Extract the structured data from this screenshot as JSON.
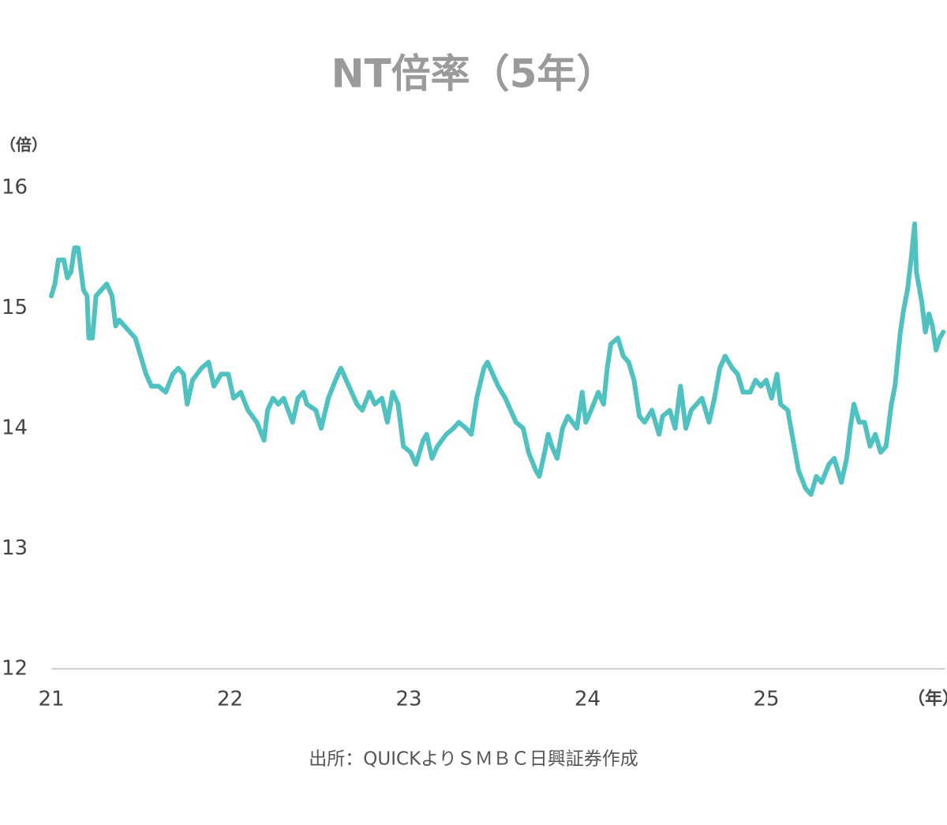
{
  "chart_data": {
    "type": "line",
    "title": "NT倍率（5年）",
    "y_label": "（倍）",
    "x_label": "（年）",
    "source": "出所：QUICKよりＳＭＢＣ日興証券作成",
    "xlim": [
      21,
      26
    ],
    "xticks": [
      21,
      22,
      23,
      24,
      25
    ],
    "ylim": [
      12,
      16
    ],
    "yticks": [
      12,
      13,
      14,
      15,
      16
    ],
    "grid": false,
    "x": [
      21.0,
      21.02,
      21.04,
      21.07,
      21.09,
      21.11,
      21.13,
      21.15,
      21.18,
      21.2,
      21.21,
      21.23,
      21.25,
      21.28,
      21.31,
      21.34,
      21.36,
      21.38,
      21.41,
      21.44,
      21.47,
      21.5,
      21.53,
      21.56,
      21.6,
      21.64,
      21.68,
      21.71,
      21.74,
      21.76,
      21.79,
      21.84,
      21.88,
      21.91,
      21.95,
      21.99,
      22.02,
      22.06,
      22.1,
      22.15,
      22.19,
      22.21,
      22.24,
      22.27,
      22.3,
      22.35,
      22.38,
      22.41,
      22.43,
      22.48,
      22.51,
      22.55,
      22.59,
      22.62,
      22.65,
      22.68,
      22.71,
      22.74,
      22.78,
      22.81,
      22.85,
      22.88,
      22.91,
      22.94,
      22.97,
      23.01,
      23.04,
      23.08,
      23.1,
      23.13,
      23.16,
      23.21,
      23.25,
      23.28,
      23.32,
      23.35,
      23.38,
      23.42,
      23.44,
      23.47,
      23.5,
      23.54,
      23.57,
      23.6,
      23.64,
      23.67,
      23.71,
      23.73,
      23.76,
      23.78,
      23.8,
      23.83,
      23.86,
      23.89,
      23.94,
      23.97,
      23.99,
      24.02,
      24.06,
      24.09,
      24.11,
      24.13,
      24.17,
      24.2,
      24.23,
      24.26,
      24.29,
      24.32,
      24.36,
      24.4,
      24.42,
      24.46,
      24.49,
      24.52,
      24.55,
      24.58,
      24.61,
      24.64,
      24.68,
      24.71,
      24.74,
      24.77,
      24.81,
      24.84,
      24.87,
      24.91,
      24.94,
      24.97,
      25.0,
      25.03,
      25.06,
      25.08,
      25.12,
      25.15,
      25.18,
      25.22,
      25.25,
      25.28,
      25.31,
      25.35,
      25.38,
      25.42,
      25.45,
      25.47,
      25.49,
      25.52,
      25.55,
      25.58,
      25.61,
      25.64,
      25.67,
      25.7,
      25.72,
      25.75,
      25.77,
      25.79,
      25.81,
      25.83,
      25.84,
      25.87,
      25.89,
      25.91,
      25.93,
      25.95,
      25.97,
      25.99
    ],
    "series": [
      {
        "name": "NT倍率",
        "color": "#4fc1c0",
        "values": [
          15.1,
          15.2,
          15.4,
          15.4,
          15.25,
          15.3,
          15.5,
          15.5,
          15.15,
          15.1,
          14.75,
          14.75,
          15.1,
          15.15,
          15.2,
          15.1,
          14.85,
          14.9,
          14.85,
          14.8,
          14.75,
          14.6,
          14.45,
          14.35,
          14.35,
          14.3,
          14.45,
          14.5,
          14.45,
          14.2,
          14.4,
          14.5,
          14.55,
          14.35,
          14.45,
          14.45,
          14.25,
          14.3,
          14.15,
          14.05,
          13.9,
          14.15,
          14.25,
          14.2,
          14.25,
          14.05,
          14.25,
          14.3,
          14.2,
          14.15,
          14.0,
          14.25,
          14.4,
          14.5,
          14.4,
          14.3,
          14.2,
          14.15,
          14.3,
          14.2,
          14.25,
          14.05,
          14.3,
          14.2,
          13.85,
          13.8,
          13.7,
          13.9,
          13.95,
          13.75,
          13.85,
          13.95,
          14.0,
          14.05,
          14.0,
          13.95,
          14.25,
          14.5,
          14.55,
          14.45,
          14.35,
          14.25,
          14.15,
          14.05,
          14.0,
          13.8,
          13.65,
          13.6,
          13.8,
          13.95,
          13.85,
          13.75,
          14.0,
          14.1,
          14.0,
          14.3,
          14.05,
          14.15,
          14.3,
          14.2,
          14.5,
          14.7,
          14.75,
          14.6,
          14.55,
          14.4,
          14.1,
          14.05,
          14.15,
          13.95,
          14.1,
          14.15,
          14.0,
          14.35,
          14.0,
          14.15,
          14.2,
          14.25,
          14.05,
          14.25,
          14.5,
          14.6,
          14.5,
          14.45,
          14.3,
          14.3,
          14.4,
          14.35,
          14.4,
          14.25,
          14.45,
          14.2,
          14.15,
          13.9,
          13.65,
          13.5,
          13.45,
          13.6,
          13.55,
          13.7,
          13.75,
          13.55,
          13.75,
          14.0,
          14.2,
          14.05,
          14.05,
          13.85,
          13.95,
          13.8,
          13.85,
          14.2,
          14.35,
          14.8,
          15.0,
          15.15,
          15.4,
          15.7,
          15.3,
          15.05,
          14.8,
          14.95,
          14.85,
          14.65,
          14.75,
          14.8
        ]
      }
    ]
  }
}
